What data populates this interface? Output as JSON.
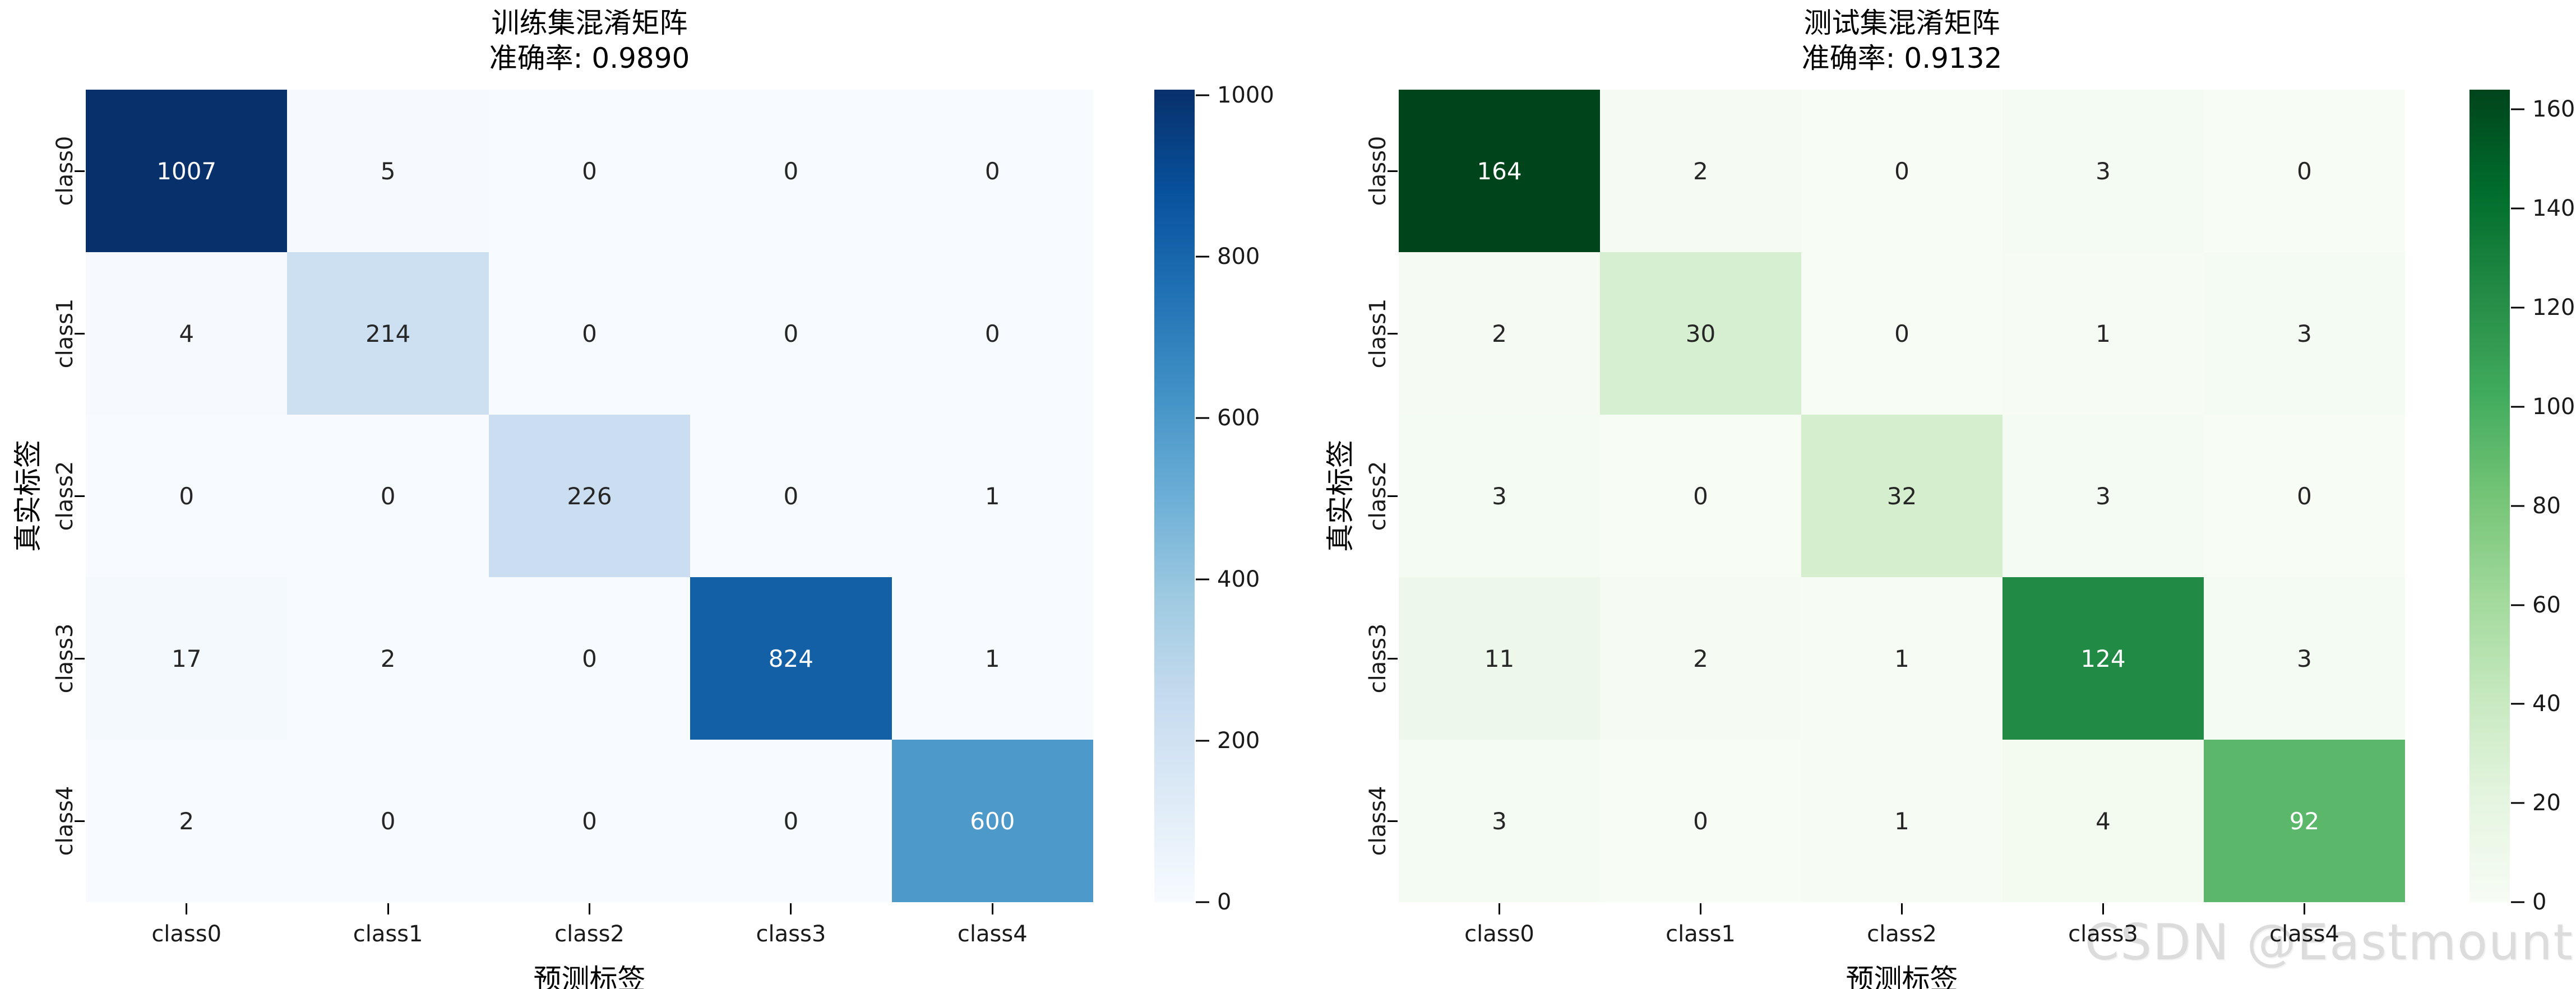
{
  "watermark": "CSDN @Eastmount",
  "chart_data": [
    {
      "type": "heatmap",
      "title": "训练集混淆矩阵",
      "subtitle": "准确率: 0.9890",
      "accuracy": 0.989,
      "xlabel": "预测标签",
      "ylabel": "真实标签",
      "x_ticklabels": [
        "class0",
        "class1",
        "class2",
        "class3",
        "class4"
      ],
      "y_ticklabels": [
        "class0",
        "class1",
        "class2",
        "class3",
        "class4"
      ],
      "matrix": [
        [
          1007,
          5,
          0,
          0,
          0
        ],
        [
          4,
          214,
          0,
          0,
          0
        ],
        [
          0,
          0,
          226,
          0,
          1
        ],
        [
          17,
          2,
          0,
          824,
          1
        ],
        [
          2,
          0,
          0,
          0,
          600
        ]
      ],
      "vmin": 0,
      "vmax": 1007,
      "colormap_name": "Blues",
      "colormap_stops": [
        "#f7fbff",
        "#deebf7",
        "#c6dbef",
        "#9ecae1",
        "#6baed6",
        "#4292c6",
        "#2171b5",
        "#08519c",
        "#08306b"
      ],
      "colorbar_ticks": [
        0,
        200,
        400,
        600,
        800,
        1000
      ],
      "legend_position": "right",
      "grid": false
    },
    {
      "type": "heatmap",
      "title": "测试集混淆矩阵",
      "subtitle": "准确率: 0.9132",
      "accuracy": 0.9132,
      "xlabel": "预测标签",
      "ylabel": "真实标签",
      "x_ticklabels": [
        "class0",
        "class1",
        "class2",
        "class3",
        "class4"
      ],
      "y_ticklabels": [
        "class0",
        "class1",
        "class2",
        "class3",
        "class4"
      ],
      "matrix": [
        [
          164,
          2,
          0,
          3,
          0
        ],
        [
          2,
          30,
          0,
          1,
          3
        ],
        [
          3,
          0,
          32,
          3,
          0
        ],
        [
          11,
          2,
          1,
          124,
          3
        ],
        [
          3,
          0,
          1,
          4,
          92
        ]
      ],
      "vmin": 0,
      "vmax": 164,
      "colormap_name": "Greens",
      "colormap_stops": [
        "#f7fcf5",
        "#e5f5e0",
        "#c7e9c0",
        "#a1d99b",
        "#74c476",
        "#41ab5d",
        "#238b45",
        "#006d2c",
        "#00441b"
      ],
      "colorbar_ticks": [
        0,
        20,
        40,
        60,
        80,
        100,
        120,
        140,
        160
      ],
      "legend_position": "right",
      "grid": false
    }
  ],
  "annotation_text_colors": {
    "dark": "#262626",
    "light": "#ffffff"
  }
}
